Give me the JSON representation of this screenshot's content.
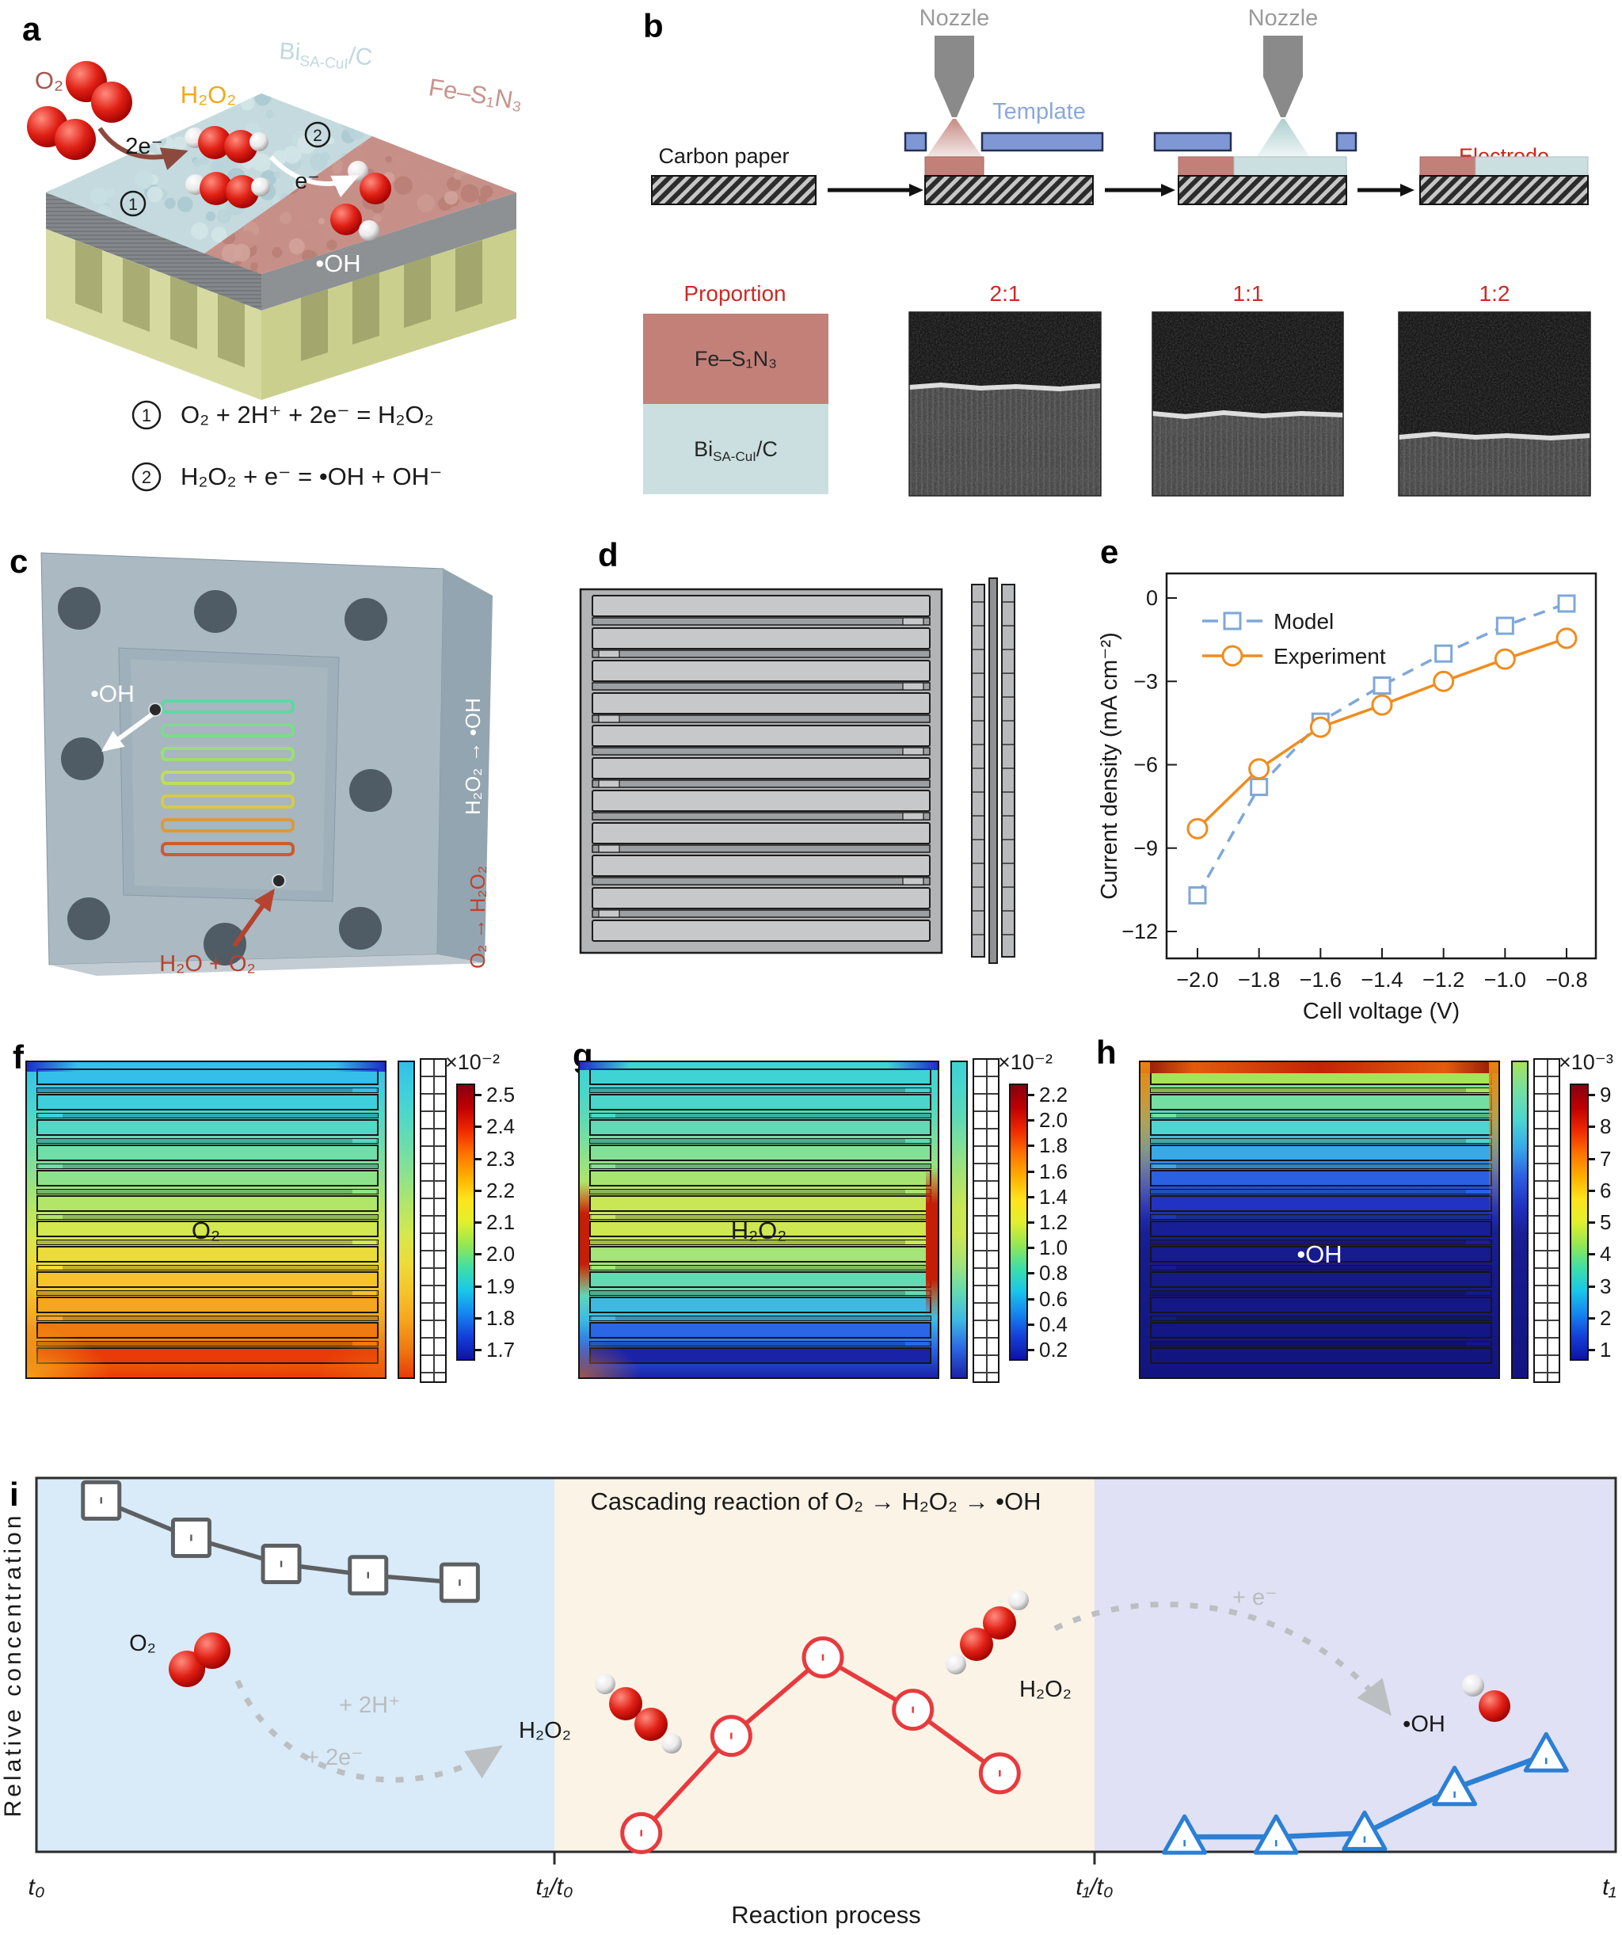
{
  "panel_a": {
    "label": "a",
    "o2": "O₂",
    "two_e": "2e⁻",
    "h2o2": "H₂O₂",
    "e_minus": "e⁻",
    "oh": "•OH",
    "step1_num": "1",
    "step2_num": "2",
    "bi_base": "Bi",
    "bi_sub": "SA-CuI",
    "bi_suffix": "/C",
    "fe": "Fe–S₁N₃",
    "eq1": "O₂ + 2H⁺ + 2e⁻ = H₂O₂",
    "eq2": "H₂O₂ + e⁻ = •OH + OH⁻"
  },
  "panel_b": {
    "label": "b",
    "nozzle_left": "Nozzle",
    "nozzle_right": "Nozzle",
    "template": "Template",
    "carbon_paper": "Carbon paper",
    "electrode": "Electrode",
    "proportion": "Proportion",
    "fe": "Fe–S₁N₃",
    "bi_base": "Bi",
    "bi_sub": "SA-CuI",
    "bi_suffix": "/C",
    "ratio_21": "2:1",
    "ratio_11": "1:1",
    "ratio_12": "1:2"
  },
  "panel_c": {
    "label": "c",
    "oh": "•OH",
    "inlet": "H₂O + O₂",
    "side_top": "H₂O₂ → •OH",
    "side_bottom": "O₂ → H₂O₂"
  },
  "panel_d": {
    "label": "d"
  },
  "panel_e": {
    "label": "e"
  },
  "panel_i": {
    "label": "i"
  },
  "heatmaps": {
    "colorbar_stops": [
      "#860012",
      "#c00000",
      "#ef2a00",
      "#ff7300",
      "#ffae00",
      "#ffe41c",
      "#e2ef2e",
      "#94e753",
      "#3edfa6",
      "#19c7e9",
      "#1585f0",
      "#143fd9",
      "#0d13a6"
    ],
    "items": [
      {
        "label": "f",
        "species": "O₂",
        "species_color": "#1a1a1a",
        "scale": "×10⁻²",
        "ticks": [
          "2.5",
          "2.4",
          "2.3",
          "2.2",
          "2.1",
          "2.0",
          "1.9",
          "1.8",
          "1.7"
        ],
        "rows": [
          "#33bfe8",
          "#3ecfdc",
          "#52d9c5",
          "#6fdea9",
          "#8fe28c",
          "#b2e668",
          "#d4e84f",
          "#ecdc3a",
          "#f5c42b",
          "#f6a51e",
          "#ef7a10",
          "#e83b07"
        ],
        "edge": "cool-top"
      },
      {
        "label": "g",
        "species": "H₂O₂",
        "species_color": "#1a1a1a",
        "scale": "×10⁻²",
        "ticks": [
          "2.2",
          "2.0",
          "1.8",
          "1.6",
          "1.4",
          "1.2",
          "1.0",
          "0.8",
          "0.6",
          "0.4",
          "0.2"
        ],
        "rows": [
          "#3fd3d6",
          "#4ad6ca",
          "#5fdab4",
          "#84e095",
          "#a8e470",
          "#c9e755",
          "#cfe750",
          "#a5e476",
          "#63dbb2",
          "#3db9e4",
          "#2b66e6",
          "#1a23a8"
        ],
        "edge": "hot-mid"
      },
      {
        "label": "h",
        "species": "•OH",
        "species_color": "#ffffff",
        "scale": "×10⁻³",
        "ticks": [
          "9",
          "8",
          "7",
          "6",
          "5",
          "4",
          "3",
          "2",
          "1"
        ],
        "rows": [
          "#a6e35a",
          "#74dfa2",
          "#4cd6d0",
          "#37a8e8",
          "#2b60e2",
          "#2133c2",
          "#181e96",
          "#161b8e",
          "#15198a",
          "#141887",
          "#131684",
          "#121580"
        ],
        "edge": "hot-top"
      }
    ]
  },
  "chart_data": [
    {
      "panel": "e",
      "type": "line",
      "xlabel": "Cell voltage (V)",
      "ylabel": "Current density (mA cm⁻²)",
      "x": [
        -2.0,
        -1.8,
        -1.6,
        -1.4,
        -1.2,
        -1.0,
        -0.8
      ],
      "xtick_labels": [
        "−2.0",
        "−1.8",
        "−1.6",
        "−1.4",
        "−1.2",
        "−1.0",
        "−0.8"
      ],
      "ytick_values": [
        0,
        -3,
        -6,
        -9,
        -12
      ],
      "ytick_labels": [
        "0",
        "−3",
        "−6",
        "−9",
        "−12"
      ],
      "ylim": [
        -13.2,
        1.2
      ],
      "legend_position": "top-left",
      "grid": false,
      "series": [
        {
          "name": "Model",
          "color": "#7ea7da",
          "marker": "square",
          "dashed": true,
          "values": [
            -10.7,
            -6.8,
            -4.45,
            -3.15,
            -2.0,
            -1.0,
            -0.2
          ]
        },
        {
          "name": "Experiment",
          "color": "#f08c1e",
          "marker": "circle",
          "dashed": false,
          "values": [
            -8.3,
            -6.15,
            -4.65,
            -3.85,
            -3.0,
            -2.2,
            -1.45
          ]
        }
      ]
    },
    {
      "panel": "i",
      "type": "line",
      "title": "Cascading reaction of O₂ → H₂O₂ → •OH",
      "xlabel": "Reaction process",
      "ylabel": "Relative concentration",
      "xtick_labels": [
        "t₀",
        "t₁/t₀",
        "t₁/t₀",
        "t₁"
      ],
      "xtick_positions": [
        0,
        0.328,
        0.67,
        1
      ],
      "regions": [
        {
          "from": 0,
          "to": 0.328,
          "color": "#d9eaf8"
        },
        {
          "from": 0.328,
          "to": 0.67,
          "color": "#fbf3e6"
        },
        {
          "from": 0.67,
          "to": 1,
          "color": "#e0e1f4"
        }
      ],
      "series": [
        {
          "name": "O₂",
          "marker": "square",
          "color": "#5d6062",
          "x": [
            0.041,
            0.098,
            0.155,
            0.21,
            0.268
          ],
          "y": [
            0.94,
            0.84,
            0.77,
            0.74,
            0.72
          ]
        },
        {
          "name": "H₂O₂",
          "marker": "circle",
          "color": "#e83a3e",
          "x": [
            0.383,
            0.44,
            0.498,
            0.555,
            0.61
          ],
          "y": [
            0.05,
            0.31,
            0.52,
            0.38,
            0.21
          ]
        },
        {
          "name": "•OH",
          "marker": "triangle",
          "color": "#2b7fd4",
          "x": [
            0.727,
            0.785,
            0.841,
            0.898,
            0.956
          ],
          "y": [
            0.04,
            0.04,
            0.05,
            0.17,
            0.26
          ]
        }
      ],
      "annotations": {
        "o2_label": "O₂",
        "h2o2_label_left": "H₂O₂",
        "h2o2_label_mid": "H₂O₂",
        "oh_label": "•OH",
        "arrow1_label_top": "+ 2H⁺",
        "arrow1_label_bottom": "+ 2e⁻",
        "arrow2_label": "+ e⁻"
      }
    }
  ]
}
